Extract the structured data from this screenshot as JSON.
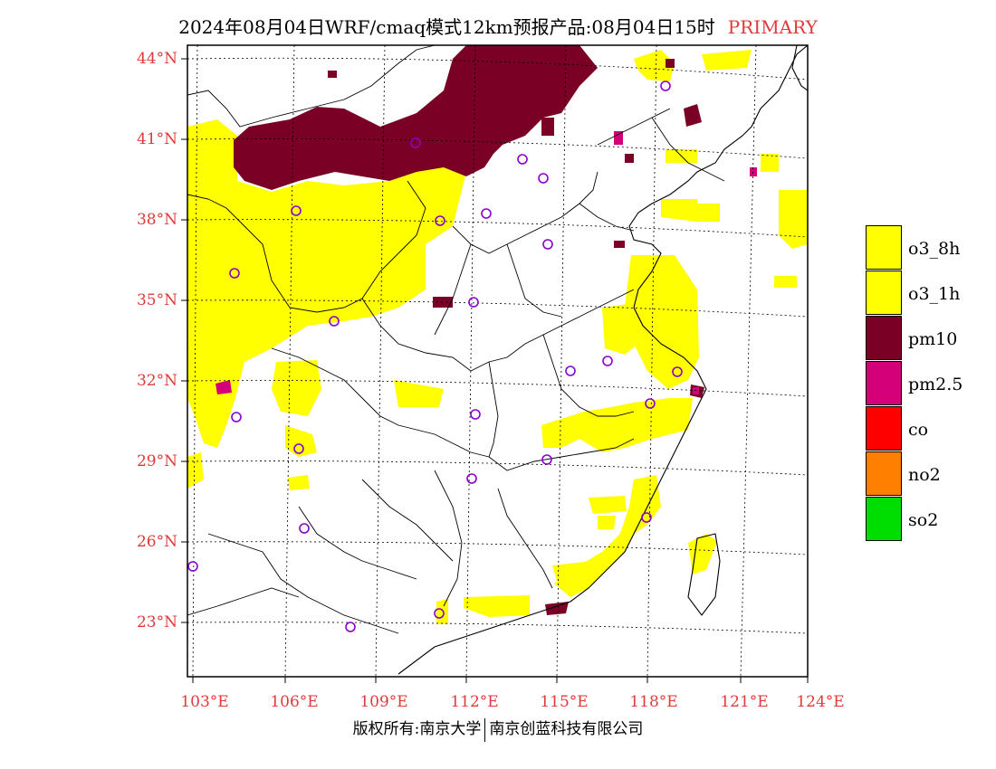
{
  "title": {
    "main": "2024年08月04日WRF/cmaq模式12km预报产品:08月04日15时",
    "tag": "PRIMARY"
  },
  "lat_labels": [
    "44°N",
    "41°N",
    "38°N",
    "35°N",
    "32°N",
    "29°N",
    "26°N",
    "23°N"
  ],
  "lon_labels": [
    "103°E",
    "106°E",
    "109°E",
    "112°E",
    "115°E",
    "118°E",
    "121°E",
    "124°E"
  ],
  "legend": [
    {
      "label": "o3_8h",
      "color": "#ffff00"
    },
    {
      "label": "o3_1h",
      "color": "#ffff00"
    },
    {
      "label": "pm10",
      "color": "#7a0026"
    },
    {
      "label": "pm2.5",
      "color": "#d3007a"
    },
    {
      "label": "co",
      "color": "#ff0000"
    },
    {
      "label": "no2",
      "color": "#ff8000"
    },
    {
      "label": "so2",
      "color": "#00dd00"
    }
  ],
  "copyright": {
    "left": "版权所有:南京大学",
    "right": "南京创蓝科技有限公司"
  },
  "colors": {
    "o3": "#ffff00",
    "pm10": "#7a0026",
    "pm25": "#d3007a",
    "station": "#8a00cc",
    "label": "#e03a3a"
  }
}
